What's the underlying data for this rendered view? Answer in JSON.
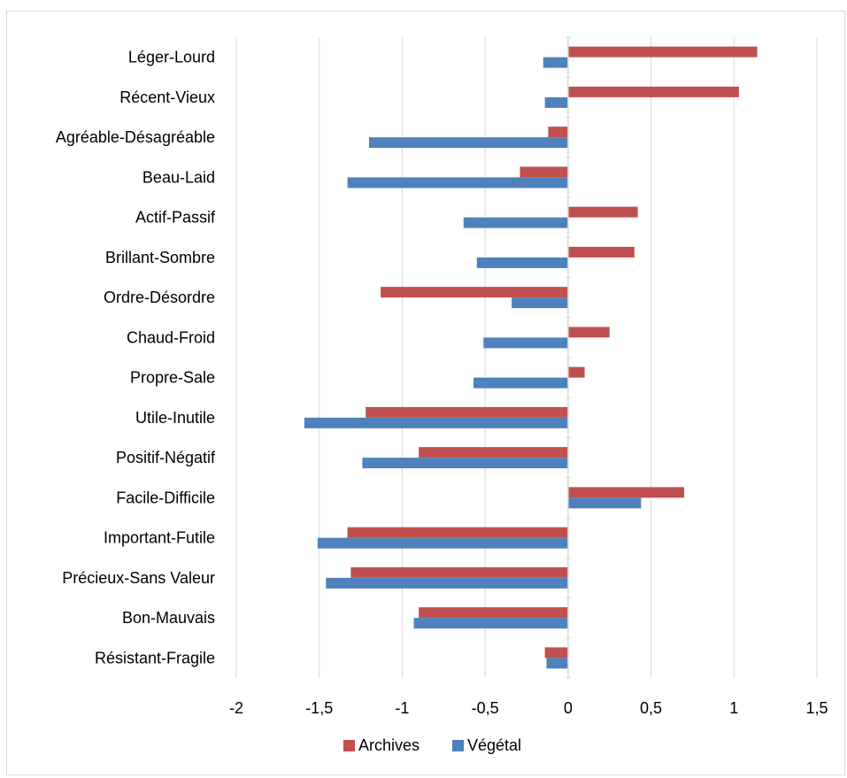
{
  "chart_data": {
    "type": "bar",
    "orientation": "horizontal",
    "title": "",
    "xlabel": "",
    "ylabel": "",
    "categories": [
      "Léger-Lourd",
      "Récent-Vieux",
      "Agréable-Désagréable",
      "Beau-Laid",
      "Actif-Passif",
      "Brillant-Sombre",
      "Ordre-Désordre",
      "Chaud-Froid",
      "Propre-Sale",
      "Utile-Inutile",
      "Positif-Négatif",
      "Facile-Difficile",
      "Important-Futile",
      "Précieux-Sans Valeur",
      "Bon-Mauvais",
      "Résistant-Fragile"
    ],
    "series": [
      {
        "name": "Archives",
        "color": "#c0504d",
        "values": [
          1.14,
          1.03,
          -0.12,
          -0.29,
          0.42,
          0.4,
          -1.13,
          0.25,
          0.1,
          -1.22,
          -0.9,
          0.7,
          -1.33,
          -1.31,
          -0.9,
          -0.14
        ]
      },
      {
        "name": "Végétal",
        "color": "#4f81bd",
        "values": [
          -0.15,
          -0.14,
          -1.2,
          -1.33,
          -0.63,
          -0.55,
          -0.34,
          -0.51,
          -0.57,
          -1.59,
          -1.24,
          0.44,
          -1.51,
          -1.46,
          -0.93,
          -0.13
        ]
      }
    ],
    "xlim": [
      -2,
      1.5
    ],
    "xticks": [
      -2,
      -1.5,
      -1,
      -0.5,
      0,
      0.5,
      1,
      1.5
    ],
    "xtick_labels": [
      "-2",
      "-1,5",
      "-1",
      "-0,5",
      "0",
      "0,5",
      "1",
      "1,5"
    ],
    "grid": "vertical",
    "legend_position": "bottom"
  }
}
